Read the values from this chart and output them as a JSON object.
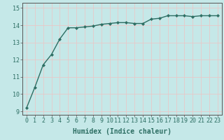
{
  "x": [
    0,
    1,
    2,
    3,
    4,
    5,
    6,
    7,
    8,
    9,
    10,
    11,
    12,
    13,
    14,
    15,
    16,
    17,
    18,
    19,
    20,
    21,
    22,
    23
  ],
  "y": [
    9.2,
    10.4,
    11.7,
    12.3,
    13.2,
    13.85,
    13.85,
    13.9,
    13.95,
    14.05,
    14.1,
    14.15,
    14.15,
    14.1,
    14.1,
    14.35,
    14.4,
    14.55,
    14.55,
    14.55,
    14.5,
    14.55,
    14.55,
    14.55
  ],
  "line_color": "#2d6e63",
  "marker": "D",
  "markersize": 2.2,
  "linewidth": 1.0,
  "xlabel": "Humidex (Indice chaleur)",
  "xlabel_fontsize": 7,
  "xlabel_bold": true,
  "xlim": [
    -0.5,
    23.5
  ],
  "ylim": [
    8.8,
    15.3
  ],
  "yticks": [
    9,
    10,
    11,
    12,
    13,
    14,
    15
  ],
  "xticks": [
    0,
    1,
    2,
    3,
    4,
    5,
    6,
    7,
    8,
    9,
    10,
    11,
    12,
    13,
    14,
    15,
    16,
    17,
    18,
    19,
    20,
    21,
    22,
    23
  ],
  "background_color": "#c5e8e8",
  "grid_color": "#e8c8c8",
  "tick_fontsize": 6,
  "spine_color": "#555555",
  "label_color": "#2d6e63"
}
